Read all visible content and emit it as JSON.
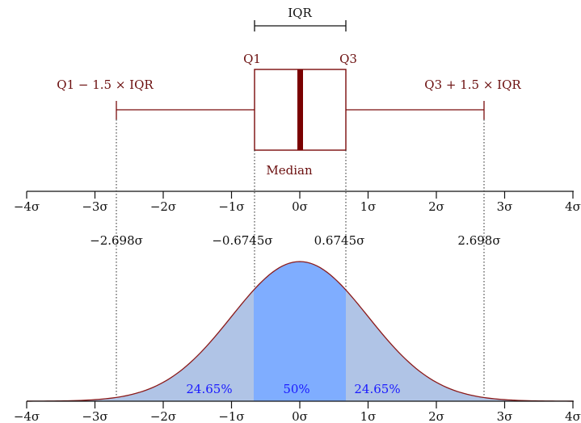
{
  "colors": {
    "boxplot": "#7a0c0c",
    "median_bar": "#7a0000",
    "axis": "#111111",
    "tail_fill": "#b0c4e6",
    "center_fill": "#7fadff",
    "curve": "#8b1a1a",
    "percent_text": "#1a1aff"
  },
  "boxplot": {
    "iqr_label": "IQR",
    "q1_label": "Q1",
    "q3_label": "Q3",
    "median_label": "Median",
    "lower_whisker_label": "Q1 − 1.5 × IQR",
    "upper_whisker_label": "Q3 + 1.5 × IQR"
  },
  "chart_data": {
    "type": "area",
    "distribution": "normal",
    "xlim": [
      -4,
      4
    ],
    "tick_values": [
      -4,
      -3,
      -2,
      -1,
      0,
      1,
      2,
      3,
      4
    ],
    "tick_labels": [
      "−4σ",
      "−3σ",
      "−2σ",
      "−1σ",
      "0σ",
      "1σ",
      "2σ",
      "3σ",
      "4σ"
    ],
    "markers": [
      {
        "value": -2.698,
        "label": "−2.698σ"
      },
      {
        "value": -0.6745,
        "label": "−0.6745σ"
      },
      {
        "value": 0.6745,
        "label": "0.6745σ"
      },
      {
        "value": 2.698,
        "label": "2.698σ"
      }
    ],
    "regions": [
      {
        "from": -2.698,
        "to": -0.6745,
        "percent": "24.65%"
      },
      {
        "from": -0.6745,
        "to": 0.6745,
        "percent": "50%"
      },
      {
        "from": 0.6745,
        "to": 2.698,
        "percent": "24.65%"
      }
    ]
  }
}
